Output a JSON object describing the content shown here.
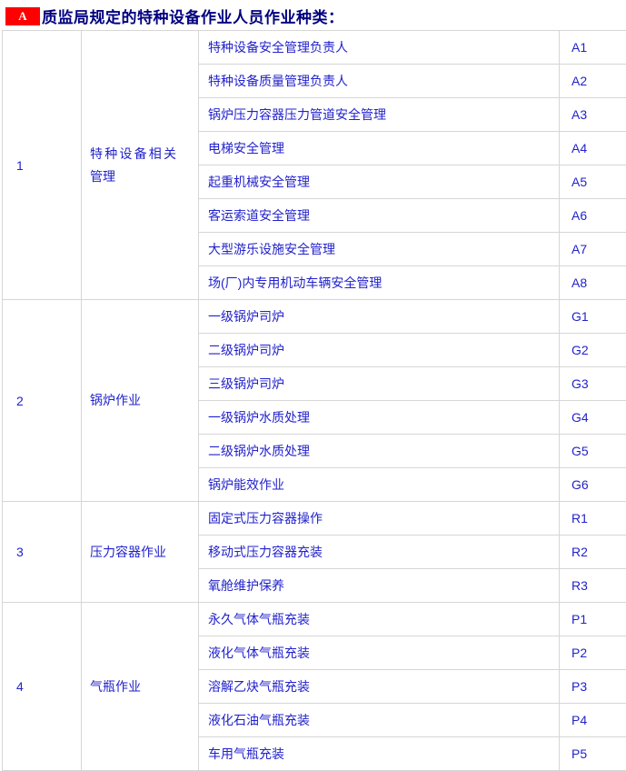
{
  "header": {
    "badge_label": "A",
    "badge_bg": "#ff0000",
    "badge_color": "#ffffff",
    "title": "质监局规定的特种设备作业人员作业种类：",
    "title_color": "#000080"
  },
  "table": {
    "border_color": "#d6d6d6",
    "text_color": "#2222cc",
    "groups": [
      {
        "no": "1",
        "category": "特种设备相关管理",
        "items": [
          {
            "name": "特种设备安全管理负责人",
            "code": "A1"
          },
          {
            "name": "特种设备质量管理负责人",
            "code": "A2"
          },
          {
            "name": "锅炉压力容器压力管道安全管理",
            "code": "A3"
          },
          {
            "name": "电梯安全管理",
            "code": "A4"
          },
          {
            "name": "起重机械安全管理",
            "code": "A5"
          },
          {
            "name": "客运索道安全管理",
            "code": "A6"
          },
          {
            "name": "大型游乐设施安全管理",
            "code": "A7"
          },
          {
            "name": "场(厂)内专用机动车辆安全管理",
            "code": "A8"
          }
        ]
      },
      {
        "no": "2",
        "category": "锅炉作业",
        "items": [
          {
            "name": "一级锅炉司炉",
            "code": "G1"
          },
          {
            "name": "二级锅炉司炉",
            "code": "G2"
          },
          {
            "name": "三级锅炉司炉",
            "code": "G3"
          },
          {
            "name": "一级锅炉水质处理",
            "code": "G4"
          },
          {
            "name": "二级锅炉水质处理",
            "code": "G5"
          },
          {
            "name": "锅炉能效作业",
            "code": "G6"
          }
        ]
      },
      {
        "no": "3",
        "category": "压力容器作业",
        "items": [
          {
            "name": "固定式压力容器操作",
            "code": "R1"
          },
          {
            "name": "移动式压力容器充装",
            "code": "R2"
          },
          {
            "name": "氧舱维护保养",
            "code": "R3"
          }
        ]
      },
      {
        "no": "4",
        "category": "气瓶作业",
        "items": [
          {
            "name": "永久气体气瓶充装",
            "code": "P1"
          },
          {
            "name": "液化气体气瓶充装",
            "code": "P2"
          },
          {
            "name": "溶解乙炔气瓶充装",
            "code": "P3"
          },
          {
            "name": "液化石油气瓶充装",
            "code": "P4"
          },
          {
            "name": "车用气瓶充装",
            "code": "P5"
          }
        ]
      }
    ]
  }
}
